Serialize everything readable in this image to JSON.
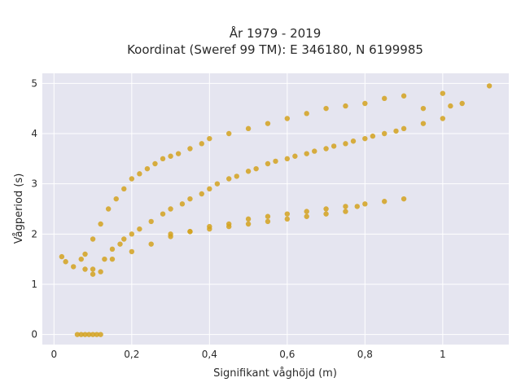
{
  "chart_data": {
    "type": "scatter",
    "title_line1": "År 1979 - 2019",
    "title_line2": "Koordinat (Sweref 99 TM): E 346180, N 6199985",
    "xlabel": "Signifikant våghöjd (m)",
    "ylabel": "Vågperiod (s)",
    "xlim": [
      -0.03,
      1.17
    ],
    "ylim": [
      -0.2,
      5.2
    ],
    "x_ticks": [
      0,
      0.2,
      0.4,
      0.6,
      0.8,
      1
    ],
    "x_tick_labels": [
      "0",
      "0,2",
      "0,4",
      "0,6",
      "0,8",
      "1"
    ],
    "y_ticks": [
      0,
      1,
      2,
      3,
      4,
      5
    ],
    "y_tick_labels": [
      "0",
      "1",
      "2",
      "3",
      "4",
      "5"
    ],
    "grid": true,
    "colors": {
      "marker": "#D4A21F",
      "plot_bg": "#E5E5F0",
      "grid": "#FFFFFF"
    },
    "series": [
      {
        "x": [
          0.02,
          0.03,
          0.05,
          0.07,
          0.08,
          0.1,
          0.12,
          0.13,
          0.15,
          0.17,
          0.18,
          0.2,
          0.22,
          0.25,
          0.28,
          0.3,
          0.33,
          0.35,
          0.38,
          0.4,
          0.42,
          0.45,
          0.47,
          0.5,
          0.52,
          0.55,
          0.57,
          0.6,
          0.62,
          0.65,
          0.67,
          0.7,
          0.72,
          0.75,
          0.77,
          0.8,
          0.82,
          0.85,
          0.88,
          0.9,
          0.95,
          1.0,
          1.02,
          1.05,
          1.12,
          0.06,
          0.07,
          0.08,
          0.09,
          0.1,
          0.11,
          0.12,
          0.08,
          0.1,
          0.12,
          0.14,
          0.16,
          0.18,
          0.2,
          0.22,
          0.24,
          0.26,
          0.28,
          0.3,
          0.32,
          0.35,
          0.38,
          0.4,
          0.45,
          0.5,
          0.55,
          0.6,
          0.65,
          0.7,
          0.75,
          0.8,
          0.85,
          0.9,
          0.95,
          1.0,
          0.1,
          0.15,
          0.2,
          0.25,
          0.3,
          0.35,
          0.4,
          0.45,
          0.5,
          0.55,
          0.6,
          0.65,
          0.7,
          0.75,
          0.8,
          0.85,
          0.9,
          0.3,
          0.35,
          0.4,
          0.45,
          0.5,
          0.55,
          0.6,
          0.65,
          0.7,
          0.75,
          0.78
        ],
        "y": [
          1.55,
          1.45,
          1.35,
          1.5,
          1.3,
          1.2,
          1.25,
          1.5,
          1.7,
          1.8,
          1.9,
          2.0,
          2.1,
          2.25,
          2.4,
          2.5,
          2.6,
          2.7,
          2.8,
          2.9,
          3.0,
          3.1,
          3.15,
          3.25,
          3.3,
          3.4,
          3.45,
          3.5,
          3.55,
          3.6,
          3.65,
          3.7,
          3.75,
          3.8,
          3.85,
          3.9,
          3.95,
          4.0,
          4.05,
          4.1,
          4.2,
          4.3,
          4.55,
          4.6,
          4.95,
          0,
          0,
          0,
          0,
          0,
          0,
          0,
          1.6,
          1.9,
          2.2,
          2.5,
          2.7,
          2.9,
          3.1,
          3.2,
          3.3,
          3.4,
          3.5,
          3.55,
          3.6,
          3.7,
          3.8,
          3.9,
          4.0,
          4.1,
          4.2,
          4.3,
          4.4,
          4.5,
          4.55,
          4.6,
          4.7,
          4.75,
          4.5,
          4.8,
          1.3,
          1.5,
          1.65,
          1.8,
          1.95,
          2.05,
          2.15,
          2.2,
          2.3,
          2.35,
          2.4,
          2.45,
          2.5,
          2.55,
          2.6,
          2.65,
          2.7,
          2.0,
          2.05,
          2.1,
          2.15,
          2.2,
          2.25,
          2.3,
          2.35,
          2.4,
          2.45,
          2.55
        ]
      }
    ]
  }
}
